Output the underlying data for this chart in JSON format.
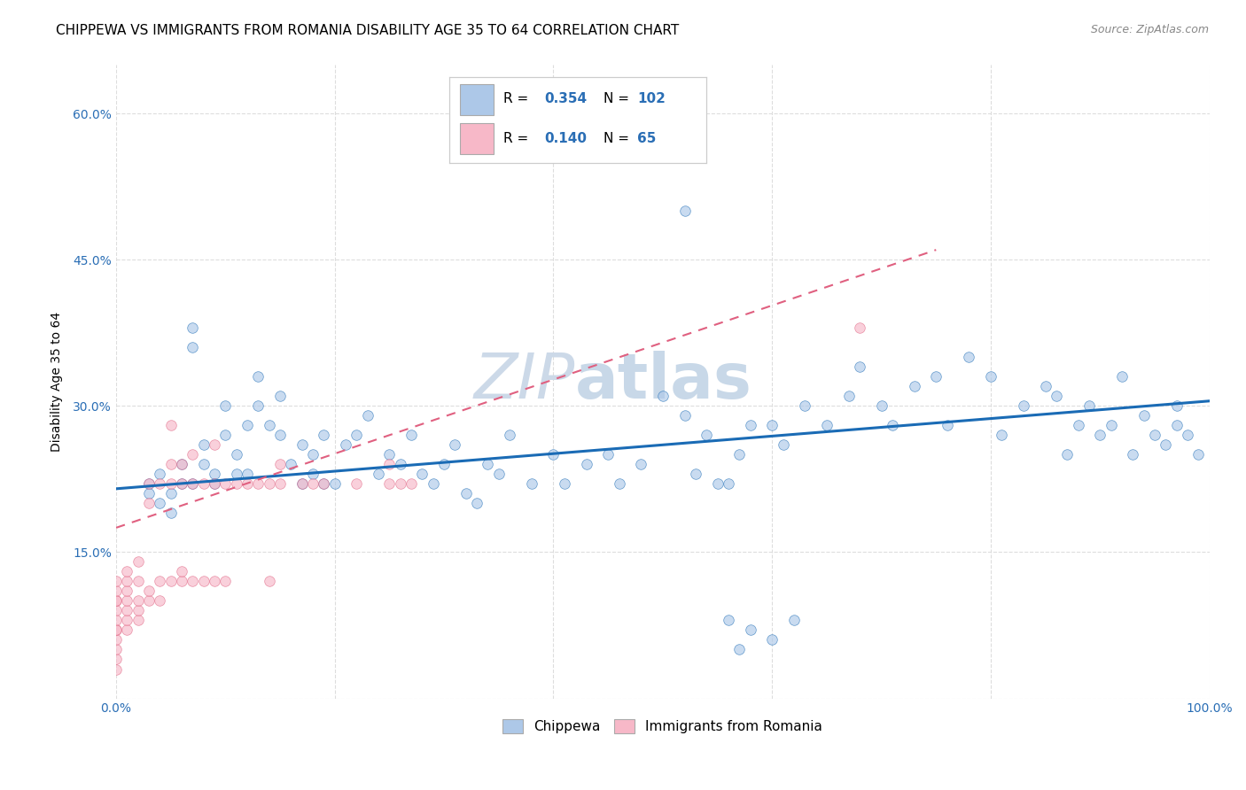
{
  "title": "CHIPPEWA VS IMMIGRANTS FROM ROMANIA DISABILITY AGE 35 TO 64 CORRELATION CHART",
  "source": "Source: ZipAtlas.com",
  "ylabel": "Disability Age 35 to 64",
  "watermark": "ZIPatlas",
  "legend_label1": "Chippewa",
  "legend_label2": "Immigrants from Romania",
  "R1": 0.354,
  "N1": 102,
  "R2": 0.14,
  "N2": 65,
  "color1": "#adc8e8",
  "color2": "#f7b8c8",
  "line_color1": "#1a6bb5",
  "line_color2": "#e06080",
  "xlim": [
    0,
    1.0
  ],
  "ylim": [
    0,
    0.65
  ],
  "background_color": "#ffffff",
  "grid_color": "#dddddd",
  "title_fontsize": 11,
  "axis_label_fontsize": 10,
  "tick_fontsize": 10,
  "watermark_fontsize": 52,
  "watermark_color": "#ccd9e8",
  "marker_size": 70,
  "marker_alpha": 0.65,
  "legend_text_color": "#2a6eb5",
  "chippewa_x": [
    0.03,
    0.03,
    0.04,
    0.04,
    0.05,
    0.05,
    0.06,
    0.06,
    0.07,
    0.07,
    0.07,
    0.08,
    0.08,
    0.09,
    0.09,
    0.1,
    0.1,
    0.11,
    0.11,
    0.12,
    0.12,
    0.13,
    0.13,
    0.14,
    0.15,
    0.15,
    0.16,
    0.17,
    0.17,
    0.18,
    0.18,
    0.19,
    0.19,
    0.2,
    0.21,
    0.22,
    0.23,
    0.24,
    0.25,
    0.26,
    0.27,
    0.28,
    0.29,
    0.3,
    0.31,
    0.32,
    0.33,
    0.34,
    0.35,
    0.36,
    0.38,
    0.4,
    0.41,
    0.43,
    0.45,
    0.46,
    0.48,
    0.5,
    0.52,
    0.53,
    0.54,
    0.55,
    0.56,
    0.57,
    0.58,
    0.6,
    0.61,
    0.63,
    0.65,
    0.67,
    0.68,
    0.7,
    0.71,
    0.73,
    0.75,
    0.76,
    0.78,
    0.8,
    0.81,
    0.83,
    0.85,
    0.86,
    0.87,
    0.88,
    0.89,
    0.9,
    0.91,
    0.92,
    0.93,
    0.94,
    0.95,
    0.96,
    0.97,
    0.97,
    0.98,
    0.99,
    0.52,
    0.56,
    0.57,
    0.58,
    0.6,
    0.62
  ],
  "chippewa_y": [
    0.22,
    0.21,
    0.23,
    0.2,
    0.21,
    0.19,
    0.22,
    0.24,
    0.38,
    0.36,
    0.22,
    0.26,
    0.24,
    0.23,
    0.22,
    0.3,
    0.27,
    0.25,
    0.23,
    0.28,
    0.23,
    0.3,
    0.33,
    0.28,
    0.31,
    0.27,
    0.24,
    0.26,
    0.22,
    0.25,
    0.23,
    0.27,
    0.22,
    0.22,
    0.26,
    0.27,
    0.29,
    0.23,
    0.25,
    0.24,
    0.27,
    0.23,
    0.22,
    0.24,
    0.26,
    0.21,
    0.2,
    0.24,
    0.23,
    0.27,
    0.22,
    0.25,
    0.22,
    0.24,
    0.25,
    0.22,
    0.24,
    0.31,
    0.29,
    0.23,
    0.27,
    0.22,
    0.22,
    0.25,
    0.28,
    0.28,
    0.26,
    0.3,
    0.28,
    0.31,
    0.34,
    0.3,
    0.28,
    0.32,
    0.33,
    0.28,
    0.35,
    0.33,
    0.27,
    0.3,
    0.32,
    0.31,
    0.25,
    0.28,
    0.3,
    0.27,
    0.28,
    0.33,
    0.25,
    0.29,
    0.27,
    0.26,
    0.3,
    0.28,
    0.27,
    0.25,
    0.5,
    0.08,
    0.05,
    0.07,
    0.06,
    0.08
  ],
  "romania_x": [
    0.0,
    0.0,
    0.0,
    0.0,
    0.0,
    0.0,
    0.0,
    0.0,
    0.0,
    0.0,
    0.0,
    0.0,
    0.01,
    0.01,
    0.01,
    0.01,
    0.01,
    0.01,
    0.01,
    0.02,
    0.02,
    0.02,
    0.02,
    0.02,
    0.03,
    0.03,
    0.03,
    0.03,
    0.04,
    0.04,
    0.04,
    0.05,
    0.05,
    0.05,
    0.05,
    0.06,
    0.06,
    0.06,
    0.06,
    0.07,
    0.07,
    0.07,
    0.08,
    0.08,
    0.09,
    0.09,
    0.09,
    0.1,
    0.1,
    0.11,
    0.12,
    0.13,
    0.14,
    0.14,
    0.15,
    0.15,
    0.17,
    0.18,
    0.19,
    0.22,
    0.25,
    0.25,
    0.26,
    0.27,
    0.68
  ],
  "romania_y": [
    0.03,
    0.04,
    0.05,
    0.06,
    0.07,
    0.07,
    0.08,
    0.09,
    0.1,
    0.1,
    0.11,
    0.12,
    0.07,
    0.08,
    0.09,
    0.1,
    0.11,
    0.12,
    0.13,
    0.08,
    0.09,
    0.1,
    0.12,
    0.14,
    0.1,
    0.11,
    0.2,
    0.22,
    0.1,
    0.12,
    0.22,
    0.12,
    0.22,
    0.24,
    0.28,
    0.12,
    0.13,
    0.22,
    0.24,
    0.12,
    0.22,
    0.25,
    0.12,
    0.22,
    0.12,
    0.22,
    0.26,
    0.12,
    0.22,
    0.22,
    0.22,
    0.22,
    0.12,
    0.22,
    0.22,
    0.24,
    0.22,
    0.22,
    0.22,
    0.22,
    0.22,
    0.24,
    0.22,
    0.22,
    0.38
  ],
  "line1_x0": 0.0,
  "line1_x1": 1.0,
  "line1_y0": 0.215,
  "line1_y1": 0.305,
  "line2_x0": 0.0,
  "line2_x1": 0.75,
  "line2_y0": 0.175,
  "line2_y1": 0.46
}
